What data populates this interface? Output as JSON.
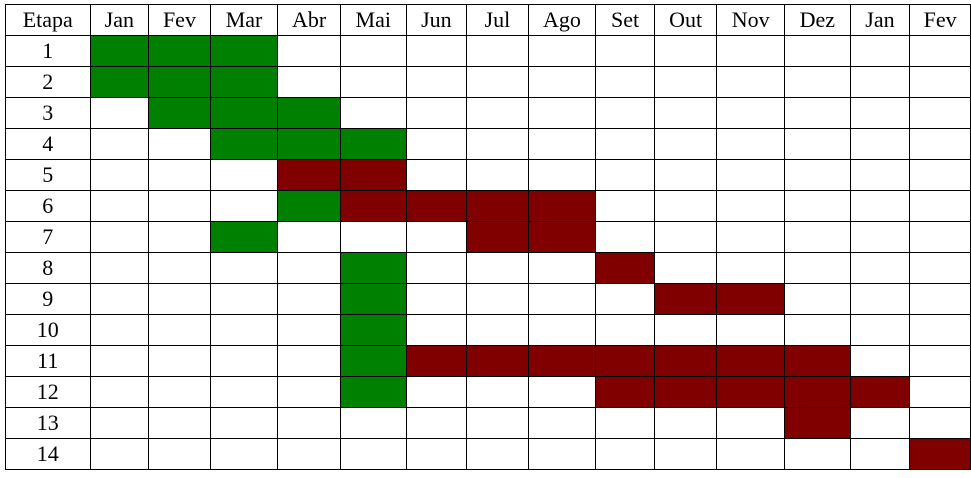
{
  "chart_data": {
    "type": "table",
    "row_header_label": "Etapa",
    "months": [
      "Jan",
      "Fev",
      "Mar",
      "Abr",
      "Mai",
      "Jun",
      "Jul",
      "Ago",
      "Set",
      "Out",
      "Nov",
      "Dez",
      "Jan",
      "Fev"
    ],
    "colors": {
      "green": "#008000",
      "red": "#800000",
      "empty": "#ffffff"
    },
    "rows": [
      {
        "etapa": "1",
        "cells": [
          "green",
          "green",
          "green",
          "",
          "",
          "",
          "",
          "",
          "",
          "",
          "",
          "",
          "",
          ""
        ]
      },
      {
        "etapa": "2",
        "cells": [
          "green",
          "green",
          "green",
          "",
          "",
          "",
          "",
          "",
          "",
          "",
          "",
          "",
          "",
          ""
        ]
      },
      {
        "etapa": "3",
        "cells": [
          "",
          "green",
          "green",
          "green",
          "",
          "",
          "",
          "",
          "",
          "",
          "",
          "",
          "",
          ""
        ]
      },
      {
        "etapa": "4",
        "cells": [
          "",
          "",
          "green",
          "green",
          "green",
          "",
          "",
          "",
          "",
          "",
          "",
          "",
          "",
          ""
        ]
      },
      {
        "etapa": "5",
        "cells": [
          "",
          "",
          "",
          "red",
          "red",
          "",
          "",
          "",
          "",
          "",
          "",
          "",
          "",
          ""
        ]
      },
      {
        "etapa": "6",
        "cells": [
          "",
          "",
          "",
          "green",
          "red",
          "red",
          "red",
          "red",
          "",
          "",
          "",
          "",
          "",
          ""
        ]
      },
      {
        "etapa": "7",
        "cells": [
          "",
          "",
          "green",
          "",
          "",
          "",
          "red",
          "red",
          "",
          "",
          "",
          "",
          "",
          ""
        ]
      },
      {
        "etapa": "8",
        "cells": [
          "",
          "",
          "",
          "",
          "green",
          "",
          "",
          "",
          "red",
          "",
          "",
          "",
          "",
          ""
        ]
      },
      {
        "etapa": "9",
        "cells": [
          "",
          "",
          "",
          "",
          "green",
          "",
          "",
          "",
          "",
          "red",
          "red",
          "",
          "",
          ""
        ]
      },
      {
        "etapa": "10",
        "cells": [
          "",
          "",
          "",
          "",
          "green",
          "",
          "",
          "",
          "",
          "",
          "",
          "",
          "",
          ""
        ]
      },
      {
        "etapa": "11",
        "cells": [
          "",
          "",
          "",
          "",
          "green",
          "red",
          "red",
          "red",
          "red",
          "red",
          "red",
          "red",
          "",
          ""
        ]
      },
      {
        "etapa": "12",
        "cells": [
          "",
          "",
          "",
          "",
          "green",
          "",
          "",
          "",
          "red",
          "red",
          "red",
          "red",
          "red",
          ""
        ]
      },
      {
        "etapa": "13",
        "cells": [
          "",
          "",
          "",
          "",
          "",
          "",
          "",
          "",
          "",
          "",
          "",
          "red",
          "",
          ""
        ]
      },
      {
        "etapa": "14",
        "cells": [
          "",
          "",
          "",
          "",
          "",
          "",
          "",
          "",
          "",
          "",
          "",
          "",
          "",
          "red"
        ]
      }
    ]
  }
}
